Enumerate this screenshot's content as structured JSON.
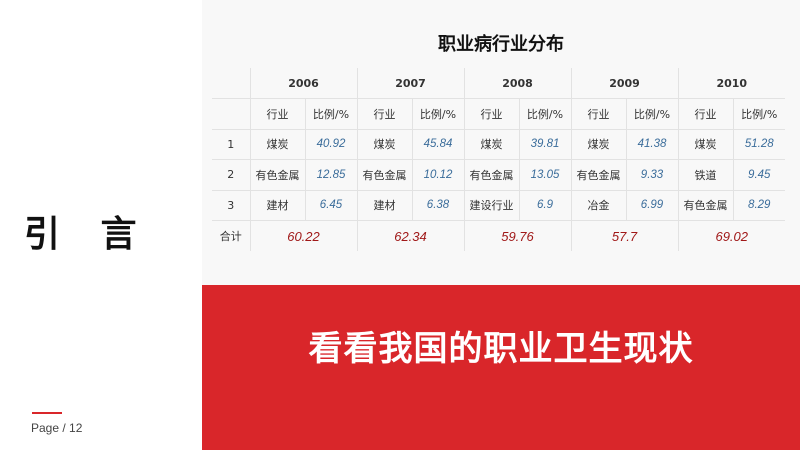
{
  "left": {
    "heading": "引 言",
    "page": "Page / 12"
  },
  "table": {
    "title": "职业病行业分布",
    "years": [
      "2006",
      "2007",
      "2008",
      "2009",
      "2010"
    ],
    "sub_headers": {
      "industry": "行业",
      "ratio": "比例/%"
    },
    "rows": [
      {
        "rank": "1",
        "cells": [
          [
            "煤炭",
            "40.92"
          ],
          [
            "煤炭",
            "45.84"
          ],
          [
            "煤炭",
            "39.81"
          ],
          [
            "煤炭",
            "41.38"
          ],
          [
            "煤炭",
            "51.28"
          ]
        ]
      },
      {
        "rank": "2",
        "cells": [
          [
            "有色金属",
            "12.85"
          ],
          [
            "有色金属",
            "10.12"
          ],
          [
            "有色金属",
            "13.05"
          ],
          [
            "有色金属",
            "9.33"
          ],
          [
            "铁道",
            "9.45"
          ]
        ]
      },
      {
        "rank": "3",
        "cells": [
          [
            "建材",
            "6.45"
          ],
          [
            "建材",
            "6.38"
          ],
          [
            "建设行业",
            "6.9"
          ],
          [
            "冶金",
            "6.99"
          ],
          [
            "有色金属",
            "8.29"
          ]
        ]
      }
    ],
    "total_label": "合计",
    "totals": [
      "60.22",
      "62.34",
      "59.76",
      "57.7",
      "69.02"
    ]
  },
  "banner": {
    "text": "看看我国的职业卫生现状"
  },
  "colors": {
    "accent": "#d9262a",
    "value": "#3a6c9a",
    "total": "#a01818"
  }
}
